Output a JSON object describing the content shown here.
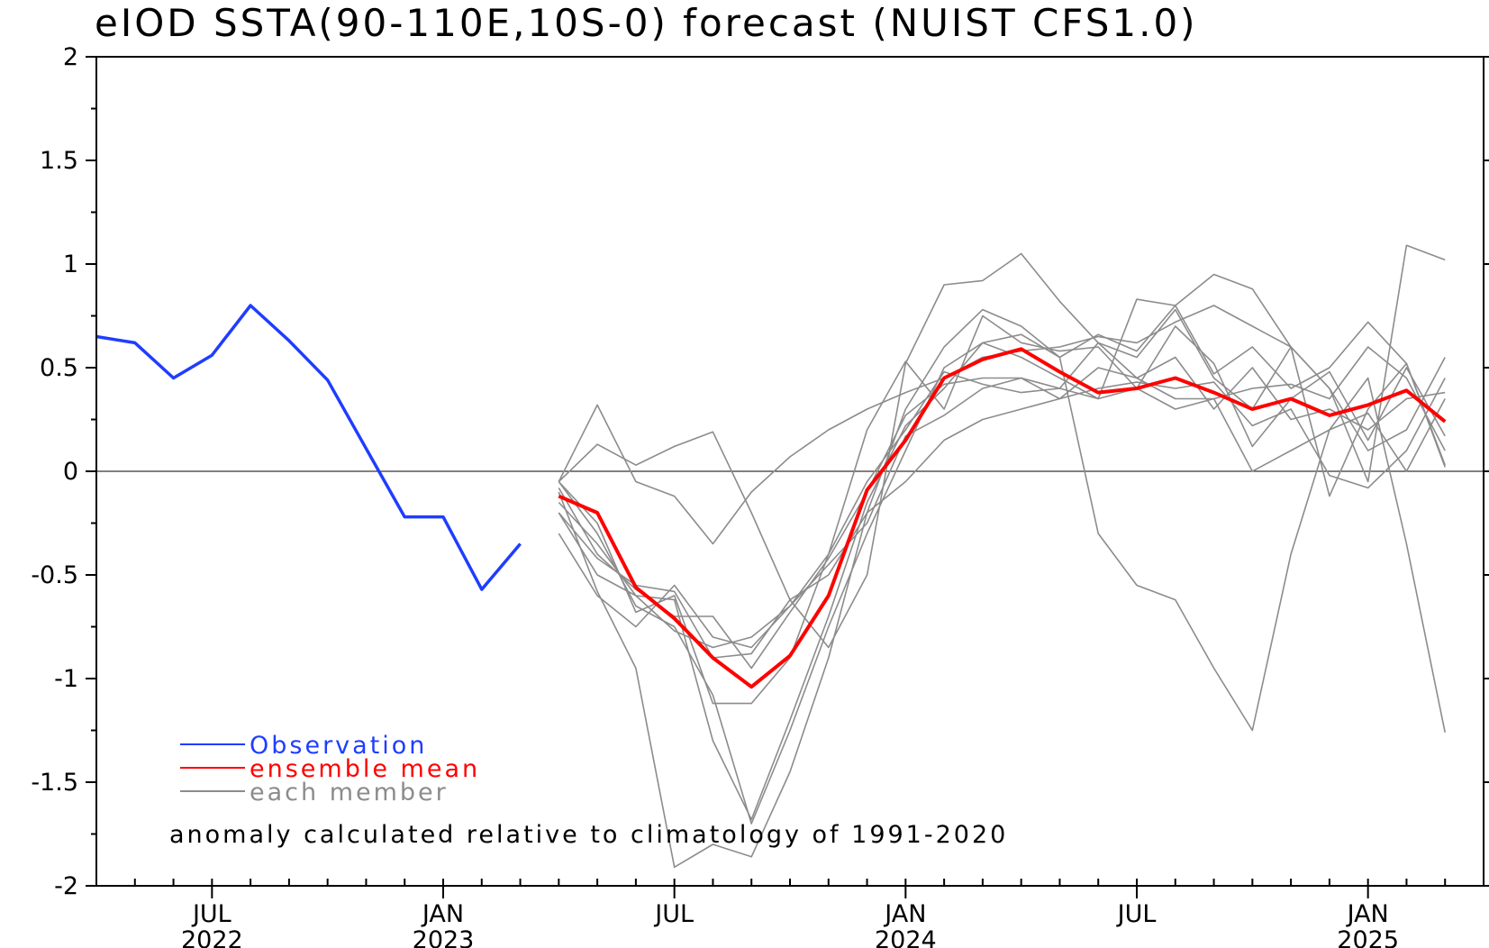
{
  "chart_data": {
    "type": "line",
    "title": "eIOD SSTA(90-110E,10S-0) forecast (NUIST CFS1.0)",
    "xlabel": "",
    "ylabel": "",
    "ylim": [
      -2,
      2
    ],
    "yticks": [
      2,
      1.5,
      1,
      0.5,
      0,
      -0.5,
      -1,
      -1.5,
      -2
    ],
    "ytick_labels": [
      "2",
      "1.5",
      "1",
      "0.5",
      "0",
      "-0.5",
      "-1",
      "-1.5",
      "-2"
    ],
    "xlim": [
      "2022-04",
      "2025-04"
    ],
    "xticks": [
      {
        "month": "2022-07",
        "label": "JUL",
        "year": "2022"
      },
      {
        "month": "2023-01",
        "label": "JAN",
        "year": "2023"
      },
      {
        "month": "2023-07",
        "label": "JUL",
        "year": ""
      },
      {
        "month": "2024-01",
        "label": "JAN",
        "year": "2024"
      },
      {
        "month": "2024-07",
        "label": "JUL",
        "year": ""
      },
      {
        "month": "2025-01",
        "label": "JAN",
        "year": "2025"
      }
    ],
    "zero_line": true,
    "grid": false,
    "legend_position": "bottom-left",
    "annotation": "anomaly calculated relative to climatology of 1991-2020",
    "observation": {
      "name": "Observation",
      "color": "#1f3dff",
      "x": [
        "2022-04",
        "2022-05",
        "2022-06",
        "2022-07",
        "2022-08",
        "2022-09",
        "2022-10",
        "2022-11",
        "2022-12",
        "2023-01",
        "2023-02",
        "2023-03"
      ],
      "values": [
        0.65,
        0.62,
        0.45,
        0.56,
        0.8,
        0.63,
        0.44,
        0.11,
        -0.22,
        -0.22,
        -0.57,
        -0.35
      ]
    },
    "ensemble_mean": {
      "name": "ensemble mean",
      "color": "#ff0000",
      "x": [
        "2023-04",
        "2023-05",
        "2023-06",
        "2023-07",
        "2023-08",
        "2023-09",
        "2023-10",
        "2023-11",
        "2023-12",
        "2024-01",
        "2024-02",
        "2024-03",
        "2024-04",
        "2024-05",
        "2024-06",
        "2024-07",
        "2024-08",
        "2024-09",
        "2024-10",
        "2024-11",
        "2024-12",
        "2025-01",
        "2025-02",
        "2025-03"
      ],
      "values": [
        -0.12,
        -0.2,
        -0.56,
        -0.71,
        -0.9,
        -1.04,
        -0.89,
        -0.6,
        -0.09,
        0.15,
        0.45,
        0.54,
        0.59,
        0.48,
        0.38,
        0.4,
        0.45,
        0.38,
        0.3,
        0.35,
        0.27,
        0.32,
        0.39,
        0.24
      ]
    },
    "members": {
      "name": "each member",
      "color": "#8c8c8c",
      "x": [
        "2023-04",
        "2023-05",
        "2023-06",
        "2023-07",
        "2023-08",
        "2023-09",
        "2023-10",
        "2023-11",
        "2023-12",
        "2024-01",
        "2024-02",
        "2024-03",
        "2024-04",
        "2024-05",
        "2024-06",
        "2024-07",
        "2024-08",
        "2024-09",
        "2024-10",
        "2024-11",
        "2024-12",
        "2025-01",
        "2025-02",
        "2025-03"
      ],
      "series": [
        [
          -0.05,
          0.32,
          -0.05,
          -0.12,
          -0.35,
          -0.1,
          0.07,
          0.2,
          0.3,
          0.38,
          0.45,
          0.55,
          0.58,
          0.6,
          0.65,
          0.62,
          0.72,
          0.8,
          0.7,
          0.6,
          0.4,
          0.1,
          0.2,
          0.55
        ],
        [
          -0.05,
          0.13,
          0.03,
          0.12,
          0.19,
          -0.2,
          -0.62,
          -0.85,
          -0.5,
          0.52,
          0.9,
          0.92,
          1.05,
          0.82,
          0.62,
          0.55,
          0.78,
          0.45,
          0.3,
          0.6,
          0.4,
          -0.05,
          1.09,
          1.02
        ],
        [
          -0.1,
          -0.58,
          -0.95,
          -1.91,
          -1.8,
          -1.86,
          -1.45,
          -0.9,
          -0.2,
          0.3,
          0.6,
          0.78,
          0.7,
          0.55,
          0.66,
          0.58,
          0.8,
          0.95,
          0.88,
          0.6,
          -0.12,
          0.3,
          0.52,
          0.02
        ],
        [
          -0.05,
          -0.3,
          -0.65,
          -0.75,
          -1.08,
          -1.7,
          -1.25,
          -0.75,
          -0.3,
          0.1,
          0.5,
          0.62,
          0.66,
          0.55,
          -0.3,
          -0.55,
          -0.62,
          -0.95,
          -1.25,
          -0.4,
          0.2,
          0.45,
          -0.35,
          -1.26
        ],
        [
          -0.2,
          -0.5,
          -0.6,
          -0.62,
          -1.3,
          -1.68,
          -1.2,
          -0.7,
          -0.15,
          0.22,
          0.4,
          0.62,
          0.55,
          0.45,
          0.35,
          0.83,
          0.8,
          0.47,
          0.6,
          0.4,
          0.5,
          0.72,
          0.52,
          0.03
        ],
        [
          -0.05,
          -0.25,
          -0.68,
          -0.6,
          -1.12,
          -1.12,
          -0.9,
          -0.4,
          0.2,
          0.53,
          0.3,
          0.75,
          0.62,
          0.58,
          0.6,
          0.4,
          0.7,
          0.52,
          0.12,
          0.35,
          0.48,
          0.15,
          0.5,
          0.17
        ],
        [
          -0.08,
          -0.4,
          -0.57,
          -0.7,
          -0.7,
          -0.95,
          -0.68,
          -0.42,
          -0.1,
          0.27,
          0.42,
          0.45,
          0.45,
          0.4,
          0.62,
          0.45,
          0.55,
          0.3,
          0.5,
          0.25,
          0.3,
          0.2,
          0.35,
          0.38
        ],
        [
          -0.15,
          -0.35,
          -0.6,
          -0.77,
          -0.85,
          -0.8,
          -0.65,
          -0.45,
          -0.25,
          0.17,
          0.27,
          0.4,
          0.45,
          0.35,
          0.5,
          0.45,
          0.35,
          0.35,
          0.0,
          0.1,
          0.2,
          0.28,
          0.0,
          0.35
        ],
        [
          -0.3,
          -0.6,
          -0.75,
          -0.55,
          -0.8,
          -0.85,
          -0.65,
          -0.4,
          -0.05,
          0.2,
          0.48,
          0.42,
          0.38,
          0.4,
          0.35,
          0.4,
          0.3,
          0.35,
          0.4,
          0.42,
          0.35,
          0.6,
          0.45,
          0.1
        ],
        [
          -0.2,
          -0.42,
          -0.55,
          -0.58,
          -0.9,
          -0.88,
          -0.62,
          -0.5,
          -0.2,
          -0.05,
          0.15,
          0.25,
          0.3,
          0.35,
          0.4,
          0.43,
          0.4,
          0.43,
          0.22,
          0.3,
          -0.02,
          -0.08,
          0.1,
          0.45
        ]
      ]
    }
  },
  "legend": [
    {
      "label": "Observation",
      "color": "#1f3dff"
    },
    {
      "label": "ensemble mean",
      "color": "#ff0000"
    },
    {
      "label": "each member",
      "color": "#8c8c8c"
    }
  ]
}
